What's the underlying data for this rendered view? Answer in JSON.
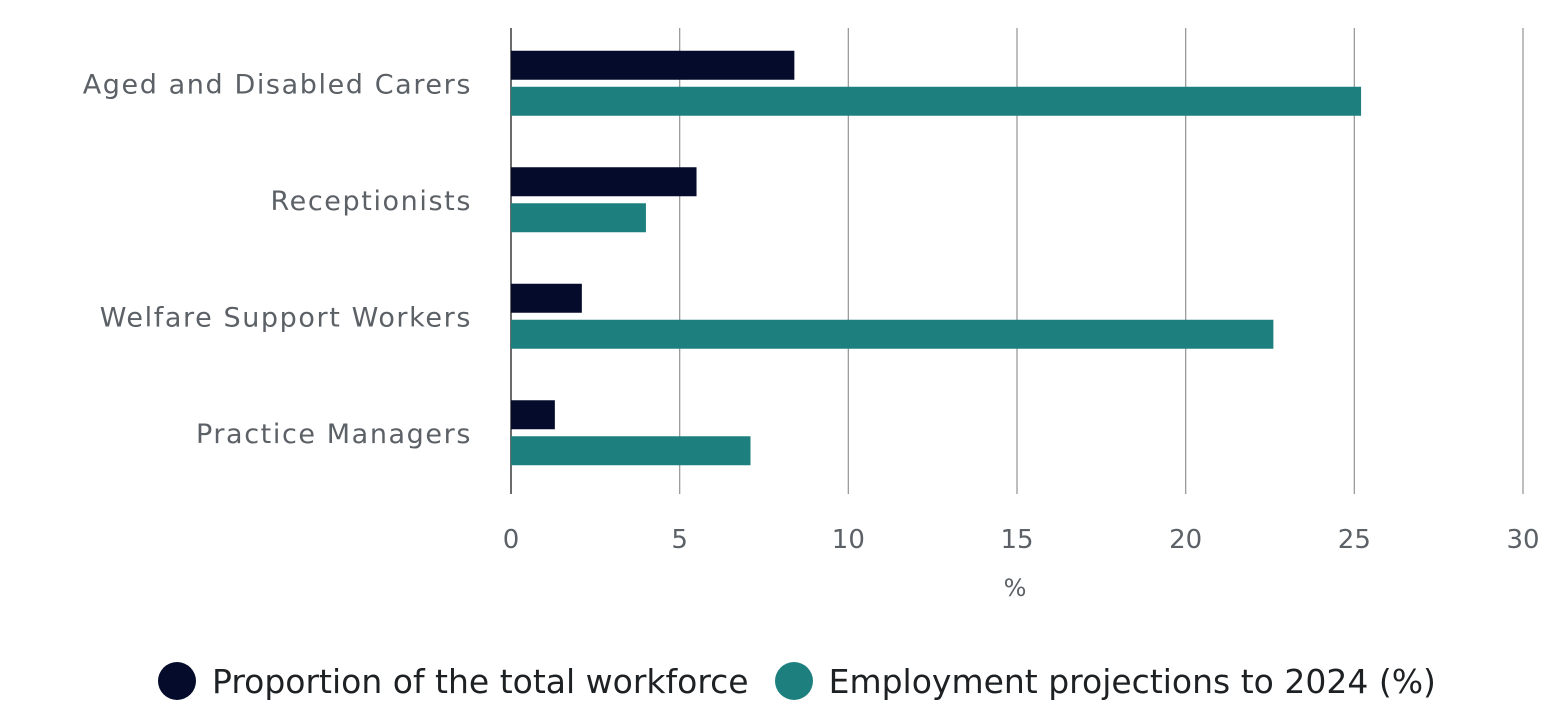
{
  "chart_data": {
    "type": "bar",
    "orientation": "horizontal",
    "categories": [
      "Aged and Disabled Carers",
      "Receptionists",
      "Welfare Support Workers",
      "Practice Managers"
    ],
    "series": [
      {
        "name": "Proportion of the total workforce",
        "color": "#050c2b",
        "values": [
          8.4,
          5.5,
          2.1,
          1.3
        ]
      },
      {
        "name": "Employment projections to 2024 (%)",
        "color": "#1e807e",
        "values": [
          25.2,
          4.0,
          22.6,
          7.1
        ]
      }
    ],
    "xlabel": "%",
    "ylabel": "",
    "xlim": [
      0,
      30
    ],
    "xticks": [
      "0",
      "5",
      "10",
      "15",
      "20",
      "25",
      "30"
    ],
    "grid": "vertical",
    "legend_position": "bottom"
  }
}
